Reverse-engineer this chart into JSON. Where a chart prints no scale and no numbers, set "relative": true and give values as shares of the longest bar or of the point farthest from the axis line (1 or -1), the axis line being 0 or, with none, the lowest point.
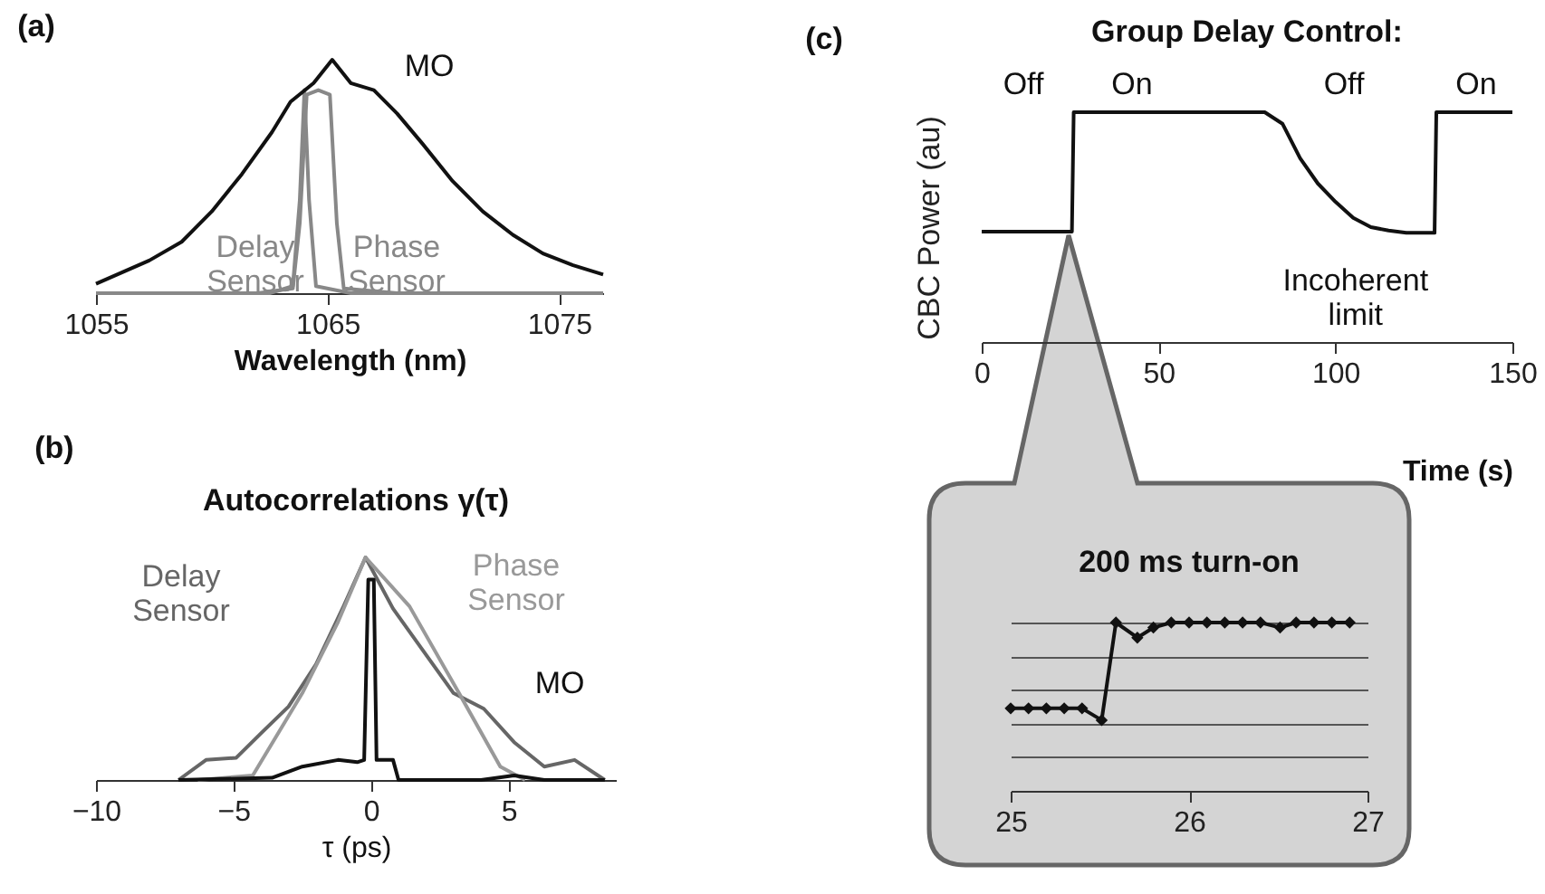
{
  "chart_data": [
    {
      "type": "line",
      "relative": true,
      "xlabel": "Wavelength (nm)",
      "xlim": [
        1055,
        1076.9
      ],
      "xticks": [
        1055,
        1065,
        1075
      ],
      "annotations": [
        "(a)"
      ],
      "series": [
        {
          "name": "Delay Sensor",
          "color": "#888888",
          "x": [
            1055,
            1062.5,
            1063.5,
            1063.8,
            1064.0,
            1064.2,
            1064.5,
            1066,
            1076.9
          ],
          "values": [
            0,
            0,
            0.03,
            0.4,
            0.87,
            0.4,
            0.03,
            0,
            0
          ]
        },
        {
          "name": "Phase Sensor",
          "color": "#888888",
          "x": [
            1055,
            1062,
            1063.5,
            1063.8,
            1064.1,
            1064.6,
            1065.1,
            1065.4,
            1065.7,
            1068,
            1076.9
          ],
          "values": [
            0,
            0,
            0.02,
            0.3,
            0.85,
            0.87,
            0.85,
            0.3,
            0.02,
            0,
            0
          ]
        },
        {
          "name": "MO",
          "color": "#111111",
          "x": [
            1055,
            1057.3,
            1058.7,
            1060,
            1061.3,
            1062.6,
            1063.4,
            1064.4,
            1065.2,
            1066,
            1067,
            1068,
            1069.1,
            1070.4,
            1071.7,
            1073,
            1074.3,
            1075.6,
            1076.9
          ],
          "values": [
            0.04,
            0.14,
            0.22,
            0.35,
            0.51,
            0.69,
            0.82,
            0.9,
            1,
            0.9,
            0.87,
            0.77,
            0.64,
            0.48,
            0.35,
            0.25,
            0.17,
            0.12,
            0.08
          ]
        }
      ]
    },
    {
      "type": "line",
      "relative": true,
      "title": "Autocorrelations γ(τ)",
      "xlabel": "τ (ps)",
      "xlim": [
        -10,
        8.9
      ],
      "xticks": [
        -10,
        -5,
        0,
        5
      ],
      "annotations": [
        "(b)"
      ],
      "series": [
        {
          "name": "Delay Sensor",
          "color": "#666666",
          "x": [
            -7,
            -6,
            -4.9,
            -4,
            -3,
            -2,
            -1,
            -0.2,
            0.8,
            1.9,
            3,
            4.1,
            5.2,
            6.3,
            7.4,
            8.5
          ],
          "values": [
            0,
            0.09,
            0.1,
            0.21,
            0.33,
            0.52,
            0.78,
            1,
            0.77,
            0.58,
            0.39,
            0.32,
            0.17,
            0.06,
            0.09,
            0
          ]
        },
        {
          "name": "Phase Sensor",
          "color": "#999999",
          "x": [
            -6.3,
            -4.3,
            -2.5,
            -1.2,
            -0.2,
            1.4,
            3.2,
            4.7,
            5.6
          ],
          "values": [
            0,
            0.02,
            0.39,
            0.71,
            1,
            0.78,
            0.39,
            0.06,
            0
          ]
        },
        {
          "name": "MO",
          "color": "#111111",
          "x": [
            -7,
            -3.6,
            -2.5,
            -1.2,
            -0.5,
            -0.25,
            -0.1,
            0.1,
            0.2,
            0.8,
            1,
            4,
            5.2,
            6.3,
            8.5
          ],
          "values": [
            0,
            0.01,
            0.06,
            0.09,
            0.08,
            0.09,
            0.9,
            0.9,
            0.09,
            0.09,
            0,
            0,
            0.02,
            0,
            0
          ]
        }
      ]
    },
    {
      "type": "line",
      "relative": true,
      "title": "Group Delay Control:",
      "xlabel": "Time (s)",
      "ylabel": "CBC Power (au)",
      "xlim": [
        0,
        150
      ],
      "xticks": [
        0,
        50,
        100,
        150
      ],
      "annotations": [
        "(c)",
        "Off",
        "On",
        "Off",
        "On",
        {
          "text": "Incoherent limit",
          "x": 120,
          "y": 0.475
        }
      ],
      "series": [
        {
          "color": "#111111",
          "x": [
            0,
            25.5,
            26,
            80,
            85,
            90,
            95,
            100,
            105,
            110,
            115,
            120,
            128,
            128.5,
            150
          ],
          "values": [
            0.48,
            0.48,
            1,
            1,
            0.95,
            0.8,
            0.69,
            0.61,
            0.54,
            0.5,
            0.485,
            0.475,
            0.475,
            1,
            1
          ]
        }
      ]
    },
    {
      "type": "line",
      "relative": true,
      "title": "200 ms turn-on",
      "xlim": [
        25,
        27
      ],
      "xticks": [
        25,
        26,
        27
      ],
      "grid": "y",
      "marker": "diamond",
      "series": [
        {
          "color": "#111111",
          "x": [
            25.0,
            25.1,
            25.2,
            25.3,
            25.4,
            25.51,
            25.59,
            25.71,
            25.8,
            25.9,
            26.0,
            26.1,
            26.2,
            26.3,
            26.4,
            26.51,
            26.6,
            26.7,
            26.8,
            26.9
          ],
          "values": [
            0.49,
            0.49,
            0.49,
            0.49,
            0.49,
            0.42,
            1,
            0.91,
            0.97,
            1,
            1,
            1,
            1,
            1,
            1,
            0.97,
            1,
            1,
            1,
            1
          ]
        }
      ]
    }
  ]
}
